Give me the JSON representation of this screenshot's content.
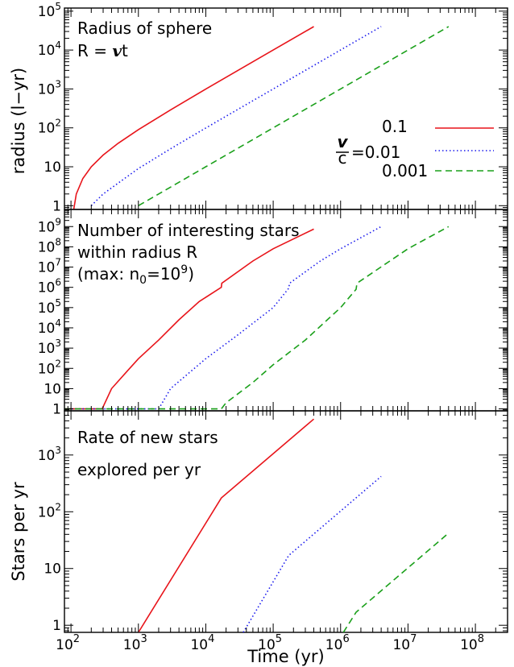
{
  "chart_data": {
    "type": "line",
    "xlabel": "Time (yr)",
    "xscale": "log",
    "xlim": [
      80,
      300000000
    ],
    "x_ticks": [
      100,
      1000,
      10000,
      100000,
      1000000,
      10000000,
      100000000
    ],
    "x_tick_labels": [
      {
        "base": "10",
        "exp": "2"
      },
      {
        "base": "10",
        "exp": "3"
      },
      {
        "base": "10",
        "exp": "4"
      },
      {
        "base": "10",
        "exp": "5"
      },
      {
        "base": "10",
        "exp": "6"
      },
      {
        "base": "10",
        "exp": "7"
      },
      {
        "base": "10",
        "exp": "8"
      }
    ],
    "legend": {
      "placement": "right, top panel",
      "fraction_num": "v",
      "fraction_den": "c",
      "entries": [
        {
          "label": "0.1",
          "color": "#e8141a",
          "dash": "solid"
        },
        {
          "label": "=0.01",
          "color": "#1a1aee",
          "dash": "dotted"
        },
        {
          "label": "0.001",
          "color": "#1aa01a",
          "dash": "dashed"
        }
      ]
    },
    "panels": [
      {
        "id": "radius",
        "ylabel": "radius (l−yr)",
        "yscale": "log",
        "ylim": [
          0.8,
          120000
        ],
        "y_ticks": [
          {
            "value": 1,
            "base": "1",
            "exp": ""
          },
          {
            "value": 10,
            "base": "10",
            "exp": ""
          },
          {
            "value": 100,
            "base": "10",
            "exp": "2"
          },
          {
            "value": 1000,
            "base": "10",
            "exp": "3"
          },
          {
            "value": 10000,
            "base": "10",
            "exp": "4"
          },
          {
            "value": 100000,
            "base": "10",
            "exp": "5"
          }
        ],
        "annotation": [
          "Radius of sphere",
          "R = vt"
        ],
        "series": [
          {
            "name": "0.1",
            "color": "#e8141a",
            "dash": "solid",
            "x": [
              100,
              105,
              120,
              150,
              200,
              300,
              500,
              1000,
              3000,
              10000,
              30000,
              100000,
              400000
            ],
            "y": [
              0.8,
              0.5,
              2,
              5,
              10,
              20,
              40,
              90,
              290,
              990,
              2990,
              9990,
              39990
            ]
          },
          {
            "name": "0.01",
            "color": "#1a1aee",
            "dash": "dotted",
            "x": [
              200,
              300,
              1000,
              3000,
              10000,
              100000,
              4000000
            ],
            "y": [
              1,
              2,
              9,
              29,
              99,
              999,
              39999
            ]
          },
          {
            "name": "0.001",
            "color": "#1aa01a",
            "dash": "dashed",
            "x": [
              1000,
              3000,
              10000,
              100000,
              1000000,
              40000000
            ],
            "y": [
              1,
              3,
              10,
              100,
              1000,
              40000
            ]
          }
        ]
      },
      {
        "id": "stars",
        "ylabel": "",
        "yscale": "log",
        "ylim": [
          0.8,
          7000000000
        ],
        "y_ticks": [
          {
            "value": 1,
            "base": "1",
            "exp": ""
          },
          {
            "value": 10,
            "base": "10",
            "exp": ""
          },
          {
            "value": 100,
            "base": "10",
            "exp": "2"
          },
          {
            "value": 1000,
            "base": "10",
            "exp": "3"
          },
          {
            "value": 10000,
            "base": "10",
            "exp": "4"
          },
          {
            "value": 100000,
            "base": "10",
            "exp": "5"
          },
          {
            "value": 1000000,
            "base": "10",
            "exp": "6"
          },
          {
            "value": 10000000,
            "base": "10",
            "exp": "7"
          },
          {
            "value": 100000000,
            "base": "10",
            "exp": "8"
          },
          {
            "value": 1000000000,
            "base": "10",
            "exp": "9"
          }
        ],
        "annotation": [
          "Number of interesting stars",
          "within radius R",
          "(max: n0=10⁹)"
        ],
        "series": [
          {
            "name": "0.1",
            "color": "#e8141a",
            "dash": "solid",
            "x": [
              80,
              290,
              400,
              700,
              1000,
              2000,
              4000,
              8000,
              17000,
              17300,
              50000,
              100000,
              400000
            ],
            "y": [
              1,
              1,
              10,
              80,
              300,
              2500,
              25000,
              200000,
              1000000,
              1600000,
              20000000,
              80000000,
              750000000
            ]
          },
          {
            "name": "0.01",
            "color": "#1a1aee",
            "dash": "dotted",
            "x": [
              80,
              2000,
              3000,
              10000,
              30000,
              100000,
              170000,
              175000,
              500000,
              1000000,
              4000000
            ],
            "y": [
              1,
              1,
              10,
              300,
              4500,
              100000,
              900000,
              1600000,
              20000000,
              80000000,
              1000000000
            ]
          },
          {
            "name": "0.001",
            "color": "#1aa01a",
            "dash": "dashed",
            "x": [
              80,
              17000,
              20000,
              50000,
              100000,
              300000,
              1000000,
              1700000,
              1750000,
              10000000,
              40000000
            ],
            "y": [
              1,
              1,
              2,
              20,
              150,
              2500,
              100000,
              800000,
              1600000,
              80000000,
              1000000000
            ]
          }
        ]
      },
      {
        "id": "rate",
        "ylabel": "Stars per yr",
        "yscale": "log",
        "ylim": [
          0.75,
          6000
        ],
        "y_ticks": [
          {
            "value": 1,
            "base": "1",
            "exp": ""
          },
          {
            "value": 10,
            "base": "10",
            "exp": ""
          },
          {
            "value": 100,
            "base": "10",
            "exp": "2"
          },
          {
            "value": 1000,
            "base": "10",
            "exp": "3"
          }
        ],
        "annotation": [
          "Rate of new stars",
          "explored per yr"
        ],
        "series": [
          {
            "name": "0.1",
            "color": "#e8141a",
            "dash": "solid",
            "x": [
              1000,
              17000,
              400000
            ],
            "y": [
              0.75,
              175,
              4300
            ]
          },
          {
            "name": "0.01",
            "color": "#1a1aee",
            "dash": "dotted",
            "x": [
              36000,
              170000,
              4000000
            ],
            "y": [
              0.75,
              17,
              420
            ]
          },
          {
            "name": "0.001",
            "color": "#1aa01a",
            "dash": "dashed",
            "x": [
              1100000,
              1700000,
              40000000
            ],
            "y": [
              0.75,
              1.7,
              42
            ]
          }
        ]
      }
    ]
  }
}
